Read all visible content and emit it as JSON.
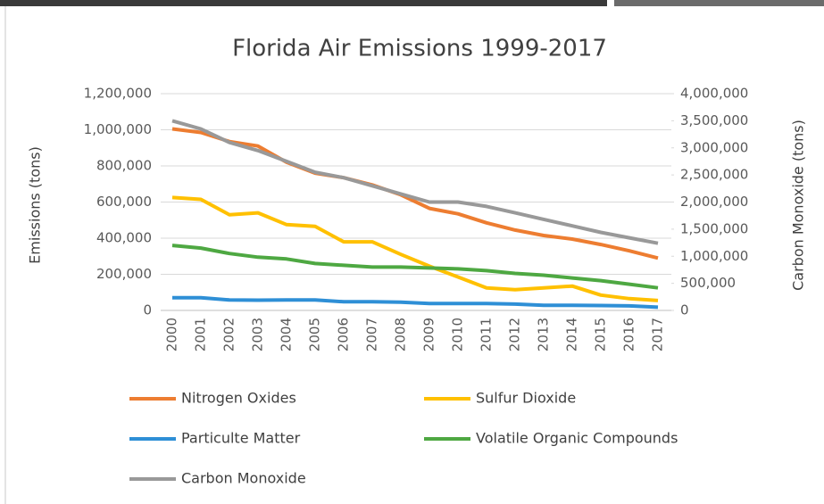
{
  "chart_data": {
    "type": "line",
    "title": "Florida Air Emissions 1999-2017",
    "y_label": "Emissions (tons)",
    "y2_label": "Carbon Monoxide (tons)",
    "categories": [
      "2000",
      "2001",
      "2002",
      "2003",
      "2004",
      "2005",
      "2006",
      "2007",
      "2008",
      "2009",
      "2010",
      "2011",
      "2012",
      "2013",
      "2014",
      "2015",
      "2016",
      "2017"
    ],
    "ylim": [
      0,
      1200000
    ],
    "yticks": [
      0,
      {
        "value": 200000,
        "label": "200,000"
      },
      {
        "value": 400000,
        "label": "400,000"
      },
      {
        "value": 600000,
        "label": "600,000"
      },
      {
        "value": 800000,
        "label": "800,000"
      },
      {
        "value": 1000000,
        "label": "1,000,000"
      },
      {
        "value": 1200000,
        "label": "1,200,000"
      }
    ],
    "y2lim": [
      0,
      4000000
    ],
    "y2ticks": [
      0,
      {
        "value": 500000,
        "label": "500,000"
      },
      {
        "value": 1000000,
        "label": "1,000,000"
      },
      {
        "value": 1500000,
        "label": "1,500,000"
      },
      {
        "value": 2000000,
        "label": "2,000,000"
      },
      {
        "value": 2500000,
        "label": "2,500,000"
      },
      {
        "value": 3000000,
        "label": "3,000,000"
      },
      {
        "value": 3500000,
        "label": "3,500,000"
      },
      {
        "value": 4000000,
        "label": "4,000,000"
      }
    ],
    "grid": true,
    "legend": "bottom",
    "series": [
      {
        "name": "Nitrogen Oxides",
        "color": "#ed7d31",
        "values": [
          1005000,
          985000,
          935000,
          910000,
          820000,
          760000,
          735000,
          695000,
          640000,
          565000,
          535000,
          485000,
          445000,
          415000,
          395000,
          365000,
          330000,
          290000
        ]
      },
      {
        "name": "Sulfur Dioxide",
        "color": "#ffc000",
        "values": [
          625000,
          615000,
          530000,
          540000,
          475000,
          465000,
          380000,
          380000,
          310000,
          245000,
          185000,
          125000,
          115000,
          125000,
          135000,
          85000,
          65000,
          55000
        ]
      },
      {
        "name": "Particulte Matter",
        "color": "#2e8fd6",
        "values": [
          70000,
          70000,
          58000,
          57000,
          58000,
          58000,
          48000,
          48000,
          46000,
          38000,
          38000,
          38000,
          35000,
          28000,
          28000,
          27000,
          25000,
          18000
        ]
      },
      {
        "name": "Volatile Organic Compounds",
        "color": "#4ea842",
        "values": [
          360000,
          345000,
          315000,
          295000,
          285000,
          260000,
          250000,
          240000,
          240000,
          235000,
          230000,
          220000,
          205000,
          195000,
          180000,
          165000,
          145000,
          125000
        ]
      },
      {
        "name": "Carbon Monoxide",
        "color": "#999999",
        "axis": "y2",
        "values": [
          3500000,
          3350000,
          3100000,
          2950000,
          2750000,
          2550000,
          2450000,
          2300000,
          2150000,
          2000000,
          2000000,
          1920000,
          1800000,
          1680000,
          1560000,
          1440000,
          1340000,
          1240000
        ]
      }
    ]
  }
}
